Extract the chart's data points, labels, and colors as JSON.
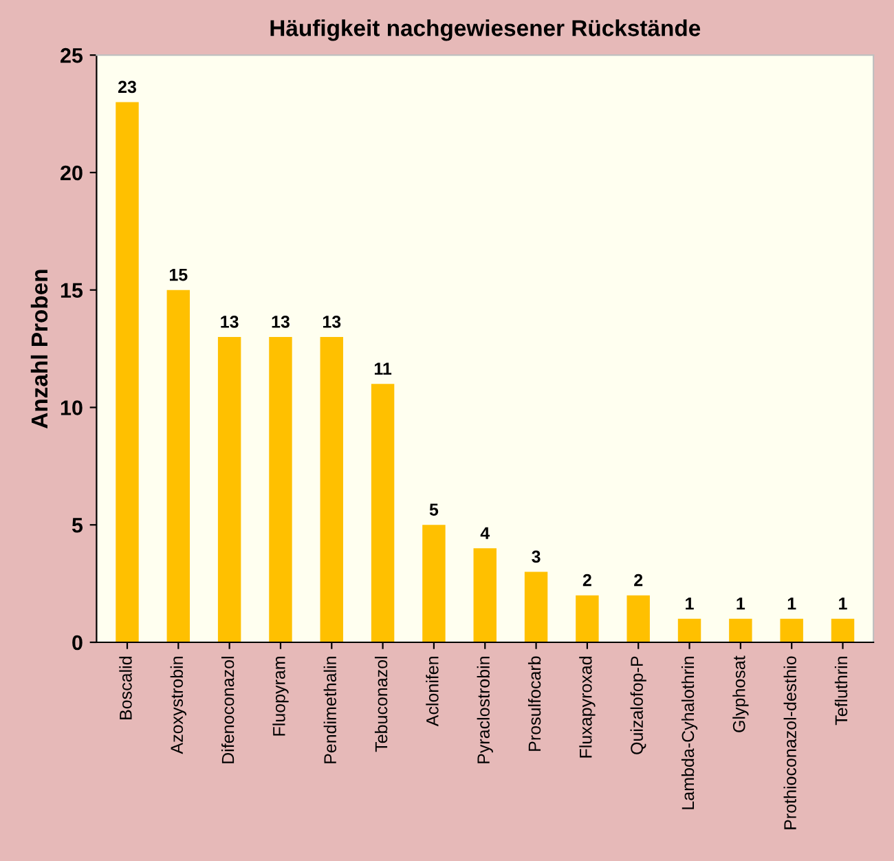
{
  "chart_data": {
    "type": "bar",
    "title": "Häufigkeit nachgewiesener Rückstände",
    "ylabel": "Anzahl Proben",
    "categories": [
      "Boscalid",
      "Azoxystrobin",
      "Difenoconazol",
      "Fluopyram",
      "Pendimethalin",
      "Tebuconazol",
      "Aclonifen",
      "Pyraclostrobin",
      "Prosulfocarb",
      "Fluxapyroxad",
      "Quizalofop-P",
      "Lambda-Cyhalothrin",
      "Glyphosat",
      "Prothioconazol-desthio",
      "Tefluthrin"
    ],
    "values": [
      23,
      15,
      13,
      13,
      13,
      11,
      5,
      4,
      3,
      2,
      2,
      1,
      1,
      1,
      1
    ],
    "color": "#ffc000",
    "ylim": [
      0,
      25
    ],
    "yticks": [
      0,
      5,
      10,
      15,
      20,
      25
    ],
    "grid": false,
    "data_labels": true
  }
}
